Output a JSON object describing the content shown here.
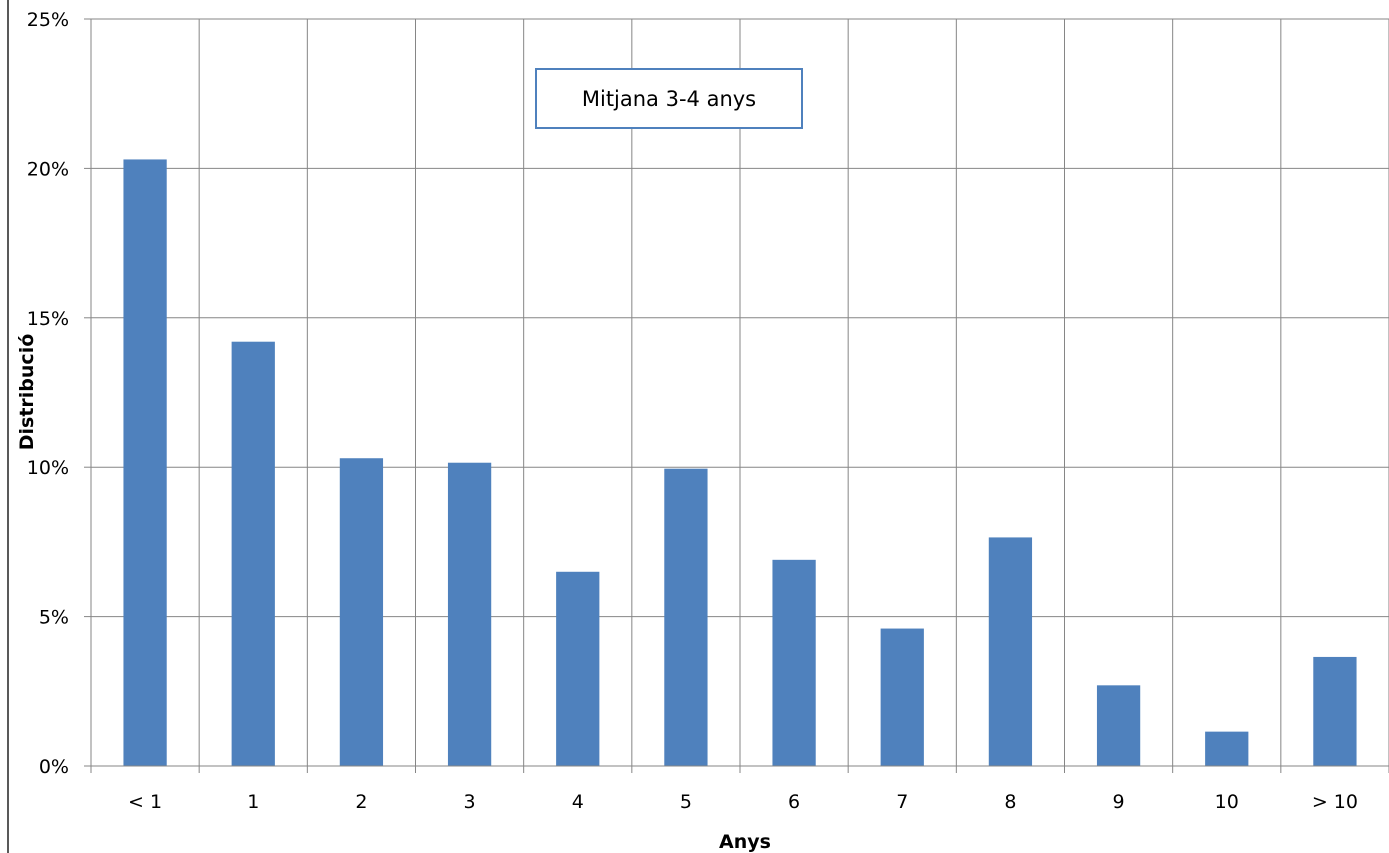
{
  "chart_data": {
    "type": "bar",
    "categories": [
      "< 1",
      "1",
      "2",
      "3",
      "4",
      "5",
      "6",
      "7",
      "8",
      "9",
      "10",
      "> 10"
    ],
    "values": [
      20.3,
      14.2,
      10.3,
      10.15,
      6.5,
      9.95,
      6.9,
      4.6,
      7.65,
      2.7,
      1.15,
      3.65
    ],
    "xlabel": "Anys",
    "ylabel": "Distribució",
    "ylim": [
      0,
      25
    ],
    "y_ticks": [
      0,
      5,
      10,
      15,
      20,
      25
    ],
    "y_tick_labels": [
      "0%",
      "5%",
      "10%",
      "15%",
      "20%",
      "25%"
    ],
    "grid": true,
    "bar_color": "#4F81BD",
    "annotation": "Mitjana 3-4 anys",
    "annotation_border_color": "#4F81BD"
  }
}
